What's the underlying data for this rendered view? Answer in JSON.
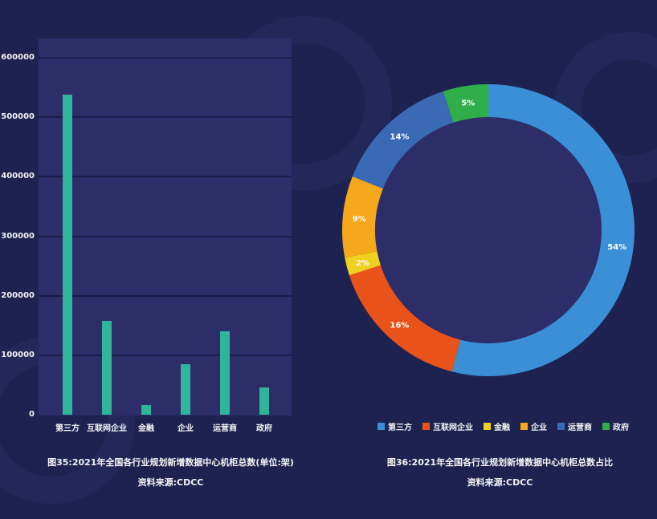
{
  "colors": {
    "background": "#1d2250",
    "plot_background": "#2c2d69",
    "bar": "#2fb59a",
    "donut_hole": "#2c2d69"
  },
  "bar_chart": {
    "y_ticks": [
      "600000",
      "500000",
      "400000",
      "300000",
      "200000",
      "100000",
      "0"
    ],
    "categories": [
      "第三方",
      "互联网企业",
      "金融",
      "企业",
      "运营商",
      "政府"
    ],
    "caption": "图35:2021年全国各行业规划新增数据中心机柜总数(单位:架)",
    "source": "资料来源:CDCC"
  },
  "donut_chart": {
    "slices": [
      {
        "name": "第三方",
        "label": "54%",
        "color": "#3a8fd6"
      },
      {
        "name": "互联网企业",
        "label": "16%",
        "color": "#e9531a"
      },
      {
        "name": "金融",
        "label": "2%",
        "color": "#f0d020"
      },
      {
        "name": "企业",
        "label": "9%",
        "color": "#f5a81b"
      },
      {
        "name": "运营商",
        "label": "14%",
        "color": "#3a6ab5"
      },
      {
        "name": "政府",
        "label": "5%",
        "color": "#2fae4a"
      }
    ],
    "caption": "图36:2021年全国各行业规划新增数据中心机柜总数占比",
    "source": "资料来源:CDCC"
  },
  "chart_data": [
    {
      "type": "bar",
      "title": "图35:2021年全国各行业规划新增数据中心机柜总数(单位:架)",
      "categories": [
        "第三方",
        "互联网企业",
        "金融",
        "企业",
        "运营商",
        "政府"
      ],
      "values": [
        538000,
        158000,
        16000,
        85000,
        140000,
        46000
      ],
      "xlabel": "",
      "ylabel": "",
      "ylim": [
        0,
        600000
      ],
      "y_ticks": [
        0,
        100000,
        200000,
        300000,
        400000,
        500000,
        600000
      ],
      "grid": true,
      "legend": null,
      "source": "资料来源:CDCC"
    },
    {
      "type": "pie",
      "subtype": "donut",
      "title": "图36:2021年全国各行业规划新增数据中心机柜总数占比",
      "categories": [
        "第三方",
        "互联网企业",
        "金融",
        "企业",
        "运营商",
        "政府"
      ],
      "values": [
        54,
        16,
        2,
        9,
        14,
        5
      ],
      "unit": "%",
      "legend_position": "bottom",
      "source": "资料来源:CDCC"
    }
  ]
}
